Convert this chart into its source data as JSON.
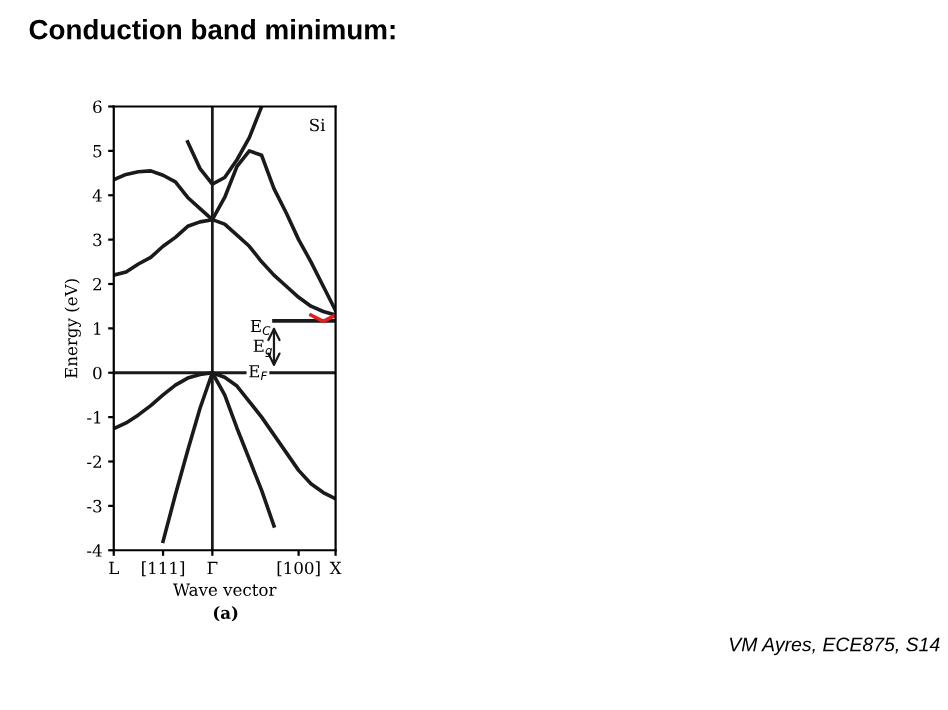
{
  "chart_data": {
    "type": "line",
    "title": "Conduction band minimum:",
    "xlabel": "Wave vector",
    "ylabel": "Energy (eV)",
    "categories": [
      "L",
      null,
      null,
      null,
      "[111]",
      null,
      null,
      null,
      "Γ",
      null,
      null,
      null,
      null,
      null,
      null,
      "[100]",
      null,
      null,
      "X"
    ],
    "ylim": [
      -4,
      6
    ],
    "yticks": [
      -4,
      -3,
      -2,
      -1,
      0,
      1,
      2,
      3,
      4,
      5,
      6
    ],
    "marker": "none",
    "line_style": "solid",
    "series": [
      {
        "color": "#1a1a1a",
        "values": [
          2.2,
          2.27,
          2.45,
          2.6,
          2.85,
          3.05,
          3.3,
          3.4,
          3.45,
          3.35,
          3.1,
          2.85,
          2.5,
          2.2,
          1.95,
          1.7,
          1.5,
          1.38,
          1.3
        ]
      },
      {
        "color": "#1a1a1a",
        "values": [
          4.35,
          4.47,
          4.53,
          4.55,
          4.45,
          4.3,
          3.95,
          3.7,
          3.45,
          null,
          null,
          null,
          null,
          null,
          null,
          null,
          null,
          null,
          null
        ]
      },
      {
        "color": "#1a1a1a",
        "values": [
          null,
          null,
          null,
          null,
          null,
          null,
          5.2,
          4.6,
          4.25,
          4.4,
          4.8,
          5.3,
          6.0,
          null,
          null,
          null,
          null,
          null,
          null
        ]
      },
      {
        "color": "#1a1a1a",
        "values": [
          null,
          null,
          null,
          null,
          null,
          null,
          null,
          null,
          3.45,
          3.95,
          4.65,
          5.0,
          4.9,
          4.15,
          3.6,
          3.0,
          2.5,
          1.95,
          1.4
        ]
      },
      {
        "color": "#1a1a1a",
        "values": [
          -1.26,
          -1.13,
          -0.95,
          -0.74,
          -0.5,
          -0.28,
          -0.12,
          -0.04,
          0,
          -0.1,
          -0.3,
          -0.65,
          -1.0,
          -1.4,
          -1.8,
          -2.2,
          -2.5,
          -2.7,
          -2.84
        ]
      },
      {
        "color": "#1a1a1a",
        "values": [
          null,
          null,
          null,
          null,
          -3.8,
          -2.75,
          -1.75,
          -0.8,
          0,
          -0.5,
          -1.25,
          -1.95,
          -2.65,
          -3.45,
          null,
          null,
          null,
          null,
          null
        ]
      },
      {
        "color": "#1a1a1a",
        "values": [
          null,
          null,
          null,
          null,
          null,
          null,
          null,
          null,
          null,
          null,
          null,
          null,
          null,
          1.17,
          1.17,
          1.17,
          1.17,
          1.17,
          1.17
        ]
      },
      {
        "color": "#e02020",
        "values": [
          null,
          null,
          null,
          null,
          null,
          null,
          null,
          null,
          null,
          null,
          null,
          null,
          null,
          null,
          null,
          null,
          1.3,
          1.16,
          1.3
        ]
      }
    ],
    "ref_lines": [
      {
        "axis": "y",
        "value": 0,
        "color": "#1a1a1a"
      },
      {
        "axis": "x",
        "value": "Γ",
        "color": "#1a1a1a"
      }
    ],
    "annotations": [
      "Si",
      "E$_{C}$",
      "E$_{g}$",
      "E$_{F}$",
      "(a)",
      "VM Ayres, ECE875, S14"
    ]
  }
}
